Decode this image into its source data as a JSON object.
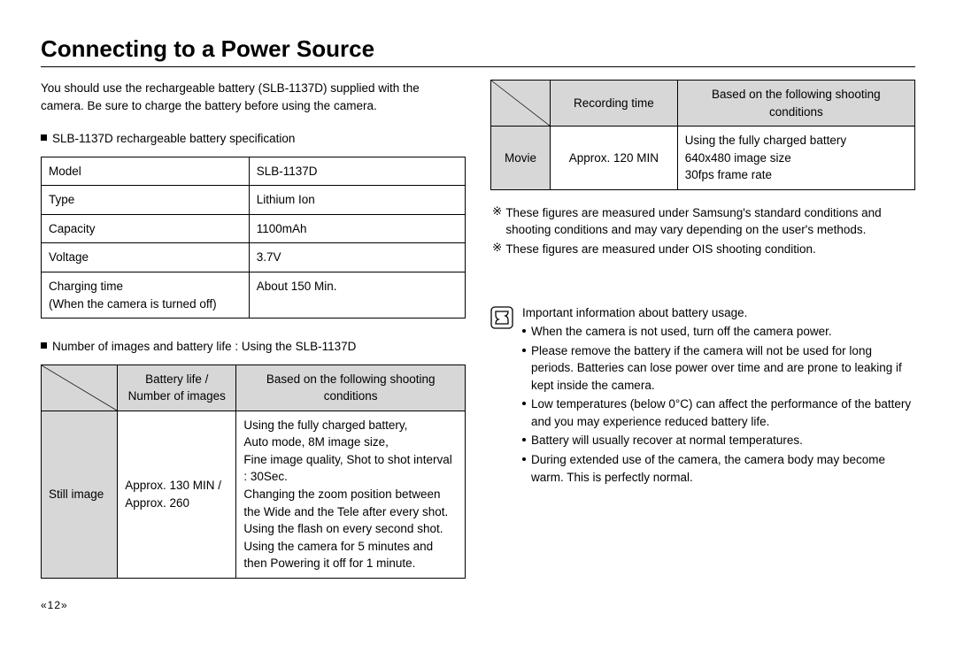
{
  "title": "Connecting to a Power Source",
  "intro": "You should use the rechargeable battery (SLB-1137D) supplied with the camera. Be sure to charge the battery before using the camera.",
  "spec_heading": "SLB-1137D rechargeable battery specification",
  "spec_rows": [
    {
      "label": "Model",
      "value": "SLB-1137D"
    },
    {
      "label": "Type",
      "value": "Lithium Ion"
    },
    {
      "label": "Capacity",
      "value": "1100mAh"
    },
    {
      "label": "Voltage",
      "value": "3.7V"
    },
    {
      "label": "Charging time\n(When the camera is turned off)",
      "value": "About 150 Min."
    }
  ],
  "usage_heading": "Number of images and battery life : Using the SLB-1137D",
  "usage_header": {
    "col2": "Battery life /\nNumber of images",
    "col3": "Based on the following shooting conditions"
  },
  "usage_row": {
    "mode": "Still image",
    "value": "Approx. 130 MIN / Approx. 260",
    "conditions": "Using the fully charged battery,\nAuto mode, 8M image size,\nFine image quality, Shot to shot interval : 30Sec.\nChanging the zoom position between the Wide and the Tele after every shot.\nUsing the flash on every second shot.\nUsing the camera for 5 minutes and then Powering it off for 1 minute."
  },
  "movie_header": {
    "col2": "Recording time",
    "col3": "Based on the following shooting conditions"
  },
  "movie_row": {
    "mode": "Movie",
    "value": "Approx. 120 MIN",
    "conditions": "Using the fully charged battery\n640x480 image size\n30fps frame rate"
  },
  "notes": [
    "These figures are measured under Samsung's standard conditions and shooting conditions and may vary depending on the user's methods.",
    "These figures are measured under OIS shooting condition."
  ],
  "info_heading": "Important information about battery usage.",
  "info_items": [
    "When the camera is not used, turn off the camera power.",
    "Please remove the battery if the camera will not be used for long periods. Batteries can lose power over time and are prone to leaking if kept inside the camera.",
    "Low temperatures (below 0°C) can affect the performance of the battery and you may experience reduced battery life.",
    "Battery will usually recover at normal temperatures.",
    "During extended use of the camera, the camera body may become warm. This is perfectly normal."
  ],
  "page_number": "«12»",
  "colors": {
    "border": "#000000",
    "gray_fill": "#d7d7d7",
    "text": "#000000",
    "background": "#ffffff"
  }
}
